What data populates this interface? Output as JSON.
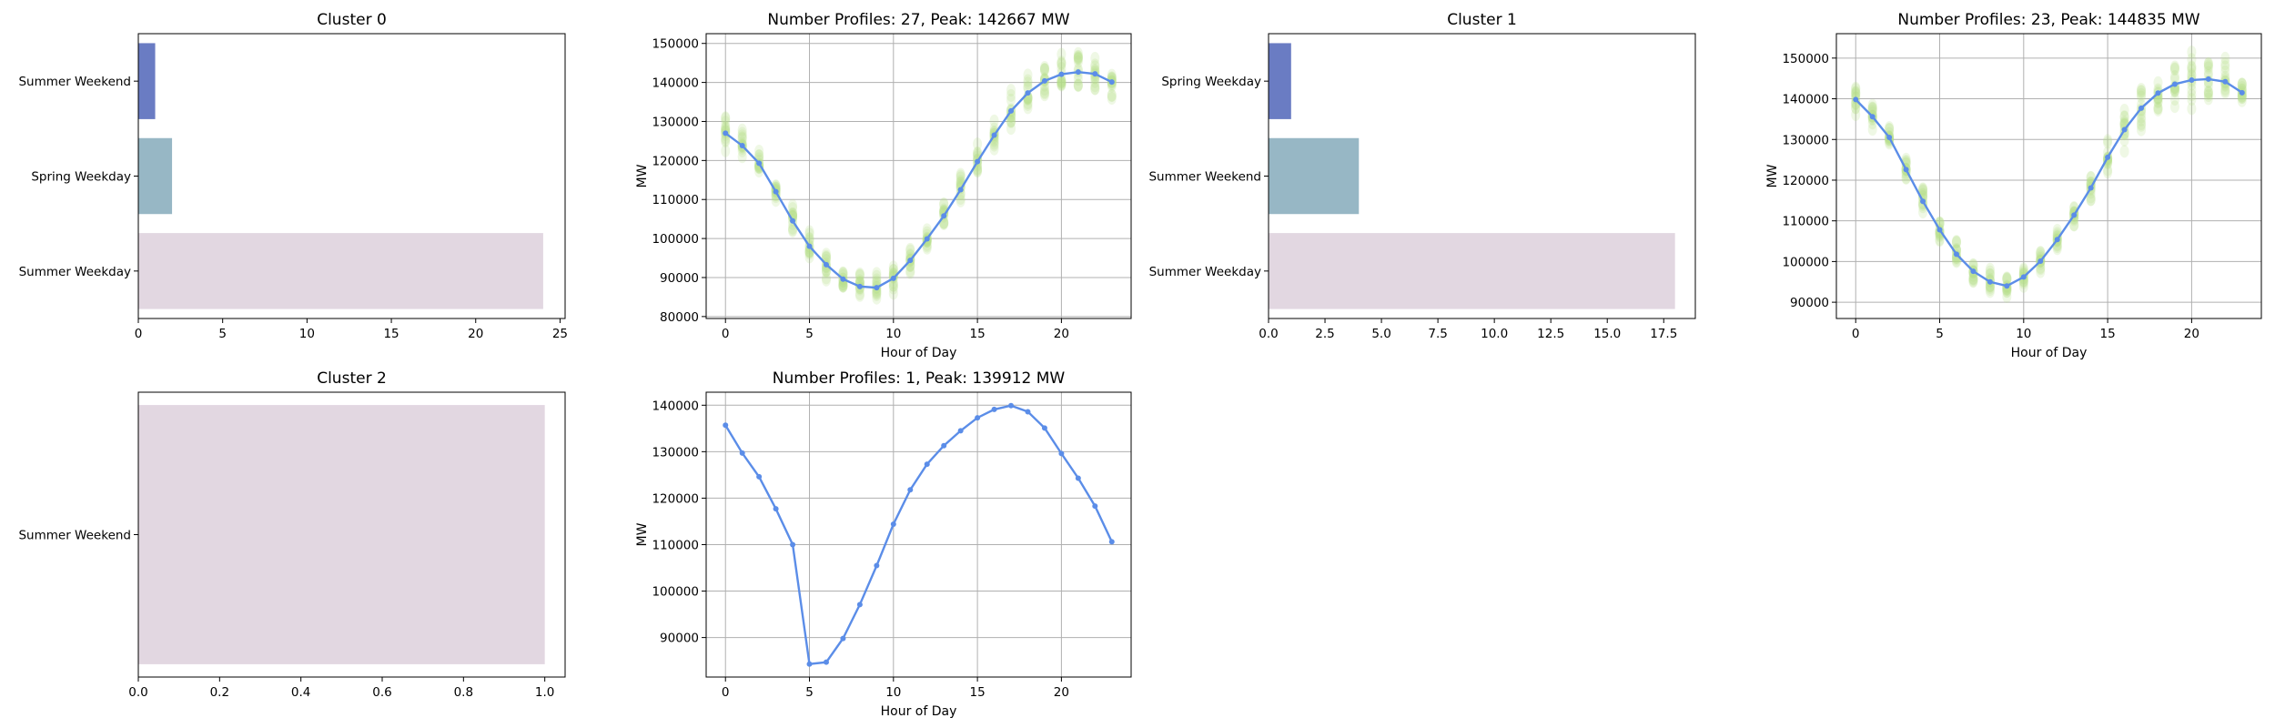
{
  "chart_data": [
    {
      "type": "bar",
      "orientation": "horizontal",
      "title": "Cluster 0",
      "categories": [
        "Summer Weekend",
        "Spring Weekday",
        "Summer Weekday"
      ],
      "values": [
        1,
        2,
        24
      ],
      "colors": [
        "#6a7cc3",
        "#97b7c5",
        "#e2d7e1"
      ],
      "xlim": [
        0,
        25.3
      ],
      "xticks": [
        0,
        5,
        10,
        15,
        20,
        25
      ],
      "xtick_labels": [
        "0",
        "5",
        "10",
        "15",
        "20",
        "25"
      ],
      "grid": false
    },
    {
      "type": "line",
      "title": "Number Profiles: 27, Peak: 142667 MW",
      "xlabel": "Hour of Day",
      "ylabel": "MW",
      "xlim": [
        -1.15,
        24.15
      ],
      "ylim": [
        79500,
        152500
      ],
      "xticks": [
        0,
        5,
        10,
        15,
        20
      ],
      "yticks": [
        80000,
        90000,
        100000,
        110000,
        120000,
        130000,
        140000,
        150000
      ],
      "grid": true,
      "line_color": "#5b8de8",
      "scatter_color": "#b5e08a",
      "series": [
        {
          "x": [
            0,
            1,
            2,
            3,
            4,
            5,
            6,
            7,
            8,
            9,
            10,
            11,
            12,
            13,
            14,
            15,
            16,
            17,
            18,
            19,
            20,
            21,
            22,
            23
          ],
          "values": [
            127000,
            123800,
            119300,
            112000,
            104500,
            98000,
            93300,
            89600,
            87700,
            87400,
            89800,
            94400,
            99900,
            105800,
            112500,
            119700,
            126500,
            132700,
            137300,
            140400,
            142100,
            142667,
            142200,
            140100
          ]
        }
      ],
      "scatter_spread": [
        5000,
        4500,
        4500,
        4500,
        4500,
        4500,
        4500,
        4500,
        4000,
        4000,
        4500,
        4500,
        4500,
        4500,
        5000,
        5000,
        5000,
        5500,
        6000,
        6000,
        7000,
        6500,
        6000,
        5000
      ]
    },
    {
      "type": "bar",
      "orientation": "horizontal",
      "title": "Cluster 1",
      "categories": [
        "Spring Weekday",
        "Summer Weekend",
        "Summer Weekday"
      ],
      "values": [
        1,
        4,
        18
      ],
      "colors": [
        "#6a7cc3",
        "#97b7c5",
        "#e2d7e1"
      ],
      "xlim": [
        0,
        18.9
      ],
      "xticks": [
        0,
        2.5,
        5,
        7.5,
        10,
        12.5,
        15,
        17.5
      ],
      "xtick_labels": [
        "0.0",
        "2.5",
        "5.0",
        "7.5",
        "10.0",
        "12.5",
        "15.0",
        "17.5"
      ],
      "grid": false
    },
    {
      "type": "line",
      "title": "Number Profiles: 23, Peak: 144835 MW",
      "xlabel": "Hour of Day",
      "ylabel": "MW",
      "xlim": [
        -1.15,
        24.15
      ],
      "ylim": [
        86000,
        156000
      ],
      "xticks": [
        0,
        5,
        10,
        15,
        20
      ],
      "yticks": [
        90000,
        100000,
        110000,
        120000,
        130000,
        140000,
        150000
      ],
      "grid": true,
      "line_color": "#5b8de8",
      "scatter_color": "#b5e08a",
      "series": [
        {
          "x": [
            0,
            1,
            2,
            3,
            4,
            5,
            6,
            7,
            8,
            9,
            10,
            11,
            12,
            13,
            14,
            15,
            16,
            17,
            18,
            19,
            20,
            21,
            22,
            23
          ],
          "values": [
            139800,
            135600,
            130500,
            122600,
            114800,
            107800,
            101800,
            97600,
            95000,
            94000,
            96200,
            100100,
            105400,
            111400,
            118100,
            125600,
            132400,
            137700,
            141400,
            143600,
            144600,
            144835,
            144200,
            141500
          ]
        }
      ],
      "scatter_spread": [
        4000,
        3500,
        3500,
        3500,
        3500,
        3500,
        3500,
        3500,
        3500,
        3500,
        3500,
        3500,
        3500,
        4000,
        4000,
        5000,
        6000,
        6500,
        7000,
        7500,
        8000,
        8000,
        7000,
        5000
      ]
    },
    {
      "type": "bar",
      "orientation": "horizontal",
      "title": "Cluster 2",
      "categories": [
        "Summer Weekend"
      ],
      "values": [
        1
      ],
      "colors": [
        "#e2d7e1"
      ],
      "xlim": [
        0,
        1.05
      ],
      "xticks": [
        0,
        0.2,
        0.4,
        0.6,
        0.8,
        1.0
      ],
      "xtick_labels": [
        "0.0",
        "0.2",
        "0.4",
        "0.6",
        "0.8",
        "1.0"
      ],
      "grid": false
    },
    {
      "type": "line",
      "title": "Number Profiles: 1, Peak: 139912 MW",
      "xlabel": "Hour of Day",
      "ylabel": "MW",
      "xlim": [
        -1.15,
        24.15
      ],
      "ylim": [
        81500,
        142800
      ],
      "xticks": [
        0,
        5,
        10,
        15,
        20
      ],
      "yticks": [
        90000,
        100000,
        110000,
        120000,
        130000,
        140000
      ],
      "grid": true,
      "line_color": "#5b8de8",
      "scatter_color": "#b5e08a",
      "series": [
        {
          "x": [
            0,
            1,
            2,
            3,
            4,
            5,
            6,
            7,
            8,
            9,
            10,
            11,
            12,
            13,
            14,
            15,
            16,
            17,
            18,
            19,
            20,
            21,
            22,
            23
          ],
          "values": [
            135700,
            129700,
            124600,
            117700,
            110000,
            84300,
            84700,
            89800,
            97100,
            105500,
            114400,
            121800,
            127300,
            131300,
            134500,
            137300,
            139100,
            139912,
            138600,
            135100,
            129600,
            124300,
            118300,
            110600
          ]
        }
      ],
      "scatter_spread": [
        0,
        0,
        0,
        0,
        0,
        0,
        0,
        0,
        0,
        0,
        0,
        0,
        0,
        0,
        0,
        0,
        0,
        0,
        0,
        0,
        0,
        0,
        0,
        0
      ]
    }
  ]
}
